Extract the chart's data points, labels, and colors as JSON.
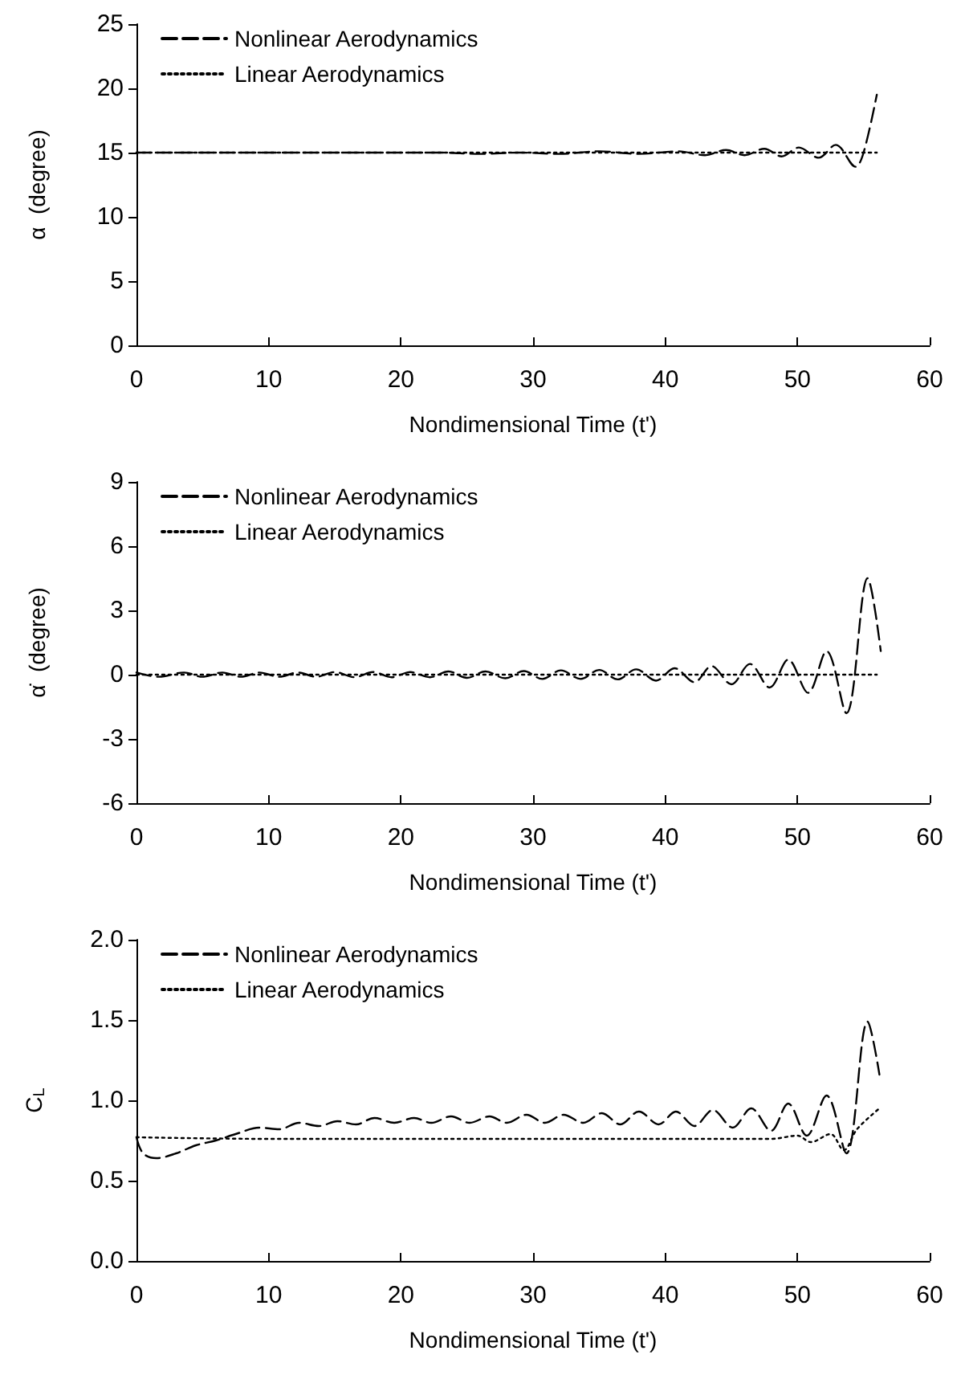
{
  "chart_data": [
    {
      "type": "line",
      "xlabel": "Nondimensional Time (t')",
      "ylabel": "α  (degree)",
      "xlim": [
        0,
        60
      ],
      "xticks": [
        0,
        10,
        20,
        30,
        40,
        50,
        60
      ],
      "ylim": [
        0,
        25
      ],
      "yticks": [
        0,
        5,
        10,
        15,
        20,
        25
      ],
      "legend": "top left",
      "marker": "none",
      "grid": false,
      "series": [
        {
          "name": "Nonlinear Aerodynamics",
          "color": "#000000",
          "line_style": "dashed",
          "x": [
            0,
            2,
            5,
            8,
            11,
            14,
            17,
            20,
            23,
            26,
            29,
            32,
            35,
            38,
            41,
            43,
            44.6,
            46,
            47.5,
            48.8,
            50.1,
            51.6,
            52.9,
            54.4,
            55,
            56
          ],
          "values": [
            15,
            15,
            15,
            15,
            15,
            15,
            15,
            15,
            15,
            14.9,
            15,
            14.9,
            15.1,
            14.9,
            15.1,
            14.8,
            15.2,
            14.8,
            15.3,
            14.7,
            15.4,
            14.6,
            15.6,
            13.9,
            15,
            19.5
          ]
        },
        {
          "name": "Linear Aerodynamics",
          "color": "#000000",
          "line_style": "dotted",
          "x": [
            0,
            56
          ],
          "values": [
            15,
            15
          ]
        }
      ]
    },
    {
      "type": "line",
      "xlabel": "Nondimensional Time (t')",
      "ylabel": "α̇  (degree)",
      "xlim": [
        0,
        60
      ],
      "xticks": [
        0,
        10,
        20,
        30,
        40,
        50,
        60
      ],
      "ylim": [
        -6,
        9
      ],
      "yticks": [
        -6,
        -3,
        0,
        3,
        6,
        9
      ],
      "legend": "top left",
      "marker": "none",
      "grid": false,
      "series": [
        {
          "name": "Nonlinear Aerodynamics",
          "color": "#000000",
          "line_style": "dashed",
          "x": [
            0,
            1.7,
            3.6,
            5,
            6.5,
            7.9,
            9.3,
            10.8,
            12.2,
            13.6,
            15,
            16.5,
            17.9,
            19.3,
            20.7,
            22.2,
            23.6,
            25,
            26.4,
            27.9,
            29.3,
            30.7,
            32.1,
            33.6,
            35,
            36.4,
            37.8,
            39.3,
            40.7,
            42.2,
            43.5,
            45,
            46.4,
            47.9,
            49.3,
            50.8,
            52.2,
            53.7,
            55.3,
            56.3
          ],
          "values": [
            0.1,
            -0.1,
            0.1,
            -0.1,
            0.1,
            -0.1,
            0.1,
            -0.1,
            0.1,
            -0.1,
            0.12,
            -0.12,
            0.12,
            -0.12,
            0.12,
            -0.12,
            0.15,
            -0.15,
            0.15,
            -0.17,
            0.17,
            -0.2,
            0.2,
            -0.2,
            0.22,
            -0.22,
            0.25,
            -0.28,
            0.3,
            -0.35,
            0.4,
            -0.45,
            0.5,
            -0.6,
            0.7,
            -0.85,
            1.1,
            -1.8,
            4.5,
            1.1
          ]
        },
        {
          "name": "Linear Aerodynamics",
          "color": "#000000",
          "line_style": "dotted",
          "x": [
            0,
            56
          ],
          "values": [
            0,
            0
          ]
        }
      ]
    },
    {
      "type": "line",
      "xlabel": "Nondimensional Time (t')",
      "ylabel": "C$_{L}$",
      "xlim": [
        0,
        60
      ],
      "xticks": [
        0,
        10,
        20,
        30,
        40,
        50,
        60
      ],
      "ylim": [
        0,
        2
      ],
      "yticks": [
        {
          "value": 0,
          "label": "0.0"
        },
        {
          "value": 0.5,
          "label": "0.5"
        },
        {
          "value": 1,
          "label": "1.0"
        },
        {
          "value": 1.5,
          "label": "1.5"
        },
        {
          "value": 2,
          "label": "2.0"
        }
      ],
      "legend": "top left",
      "marker": "none",
      "grid": false,
      "series": [
        {
          "name": "Nonlinear Aerodynamics",
          "color": "#000000",
          "line_style": "dashed",
          "x": [
            0,
            0.5,
            1.5,
            3,
            4.5,
            6,
            7.5,
            9.3,
            10.8,
            12.3,
            13.8,
            15.2,
            16.6,
            18,
            19.5,
            21,
            22.3,
            23.8,
            25.2,
            26.7,
            28,
            29.5,
            30.9,
            32.3,
            33.8,
            35.2,
            36.6,
            38,
            39.5,
            40.8,
            42.2,
            43.6,
            45.1,
            46.5,
            48,
            49.3,
            50.7,
            52.2,
            53.7,
            55.3,
            56.2
          ],
          "values": [
            0.77,
            0.67,
            0.64,
            0.67,
            0.72,
            0.75,
            0.79,
            0.83,
            0.82,
            0.86,
            0.84,
            0.87,
            0.85,
            0.89,
            0.86,
            0.89,
            0.86,
            0.9,
            0.86,
            0.9,
            0.86,
            0.91,
            0.86,
            0.91,
            0.86,
            0.92,
            0.85,
            0.93,
            0.85,
            0.93,
            0.84,
            0.94,
            0.83,
            0.95,
            0.81,
            0.98,
            0.78,
            1.03,
            0.67,
            1.49,
            1.16
          ]
        },
        {
          "name": "Linear Aerodynamics",
          "color": "#000000",
          "line_style": "dotted",
          "x": [
            0,
            10,
            20,
            30,
            40,
            48,
            50,
            51,
            52.5,
            53.5,
            54.5,
            56.2
          ],
          "values": [
            0.77,
            0.76,
            0.76,
            0.76,
            0.76,
            0.76,
            0.78,
            0.74,
            0.79,
            0.69,
            0.82,
            0.95
          ]
        }
      ]
    }
  ]
}
